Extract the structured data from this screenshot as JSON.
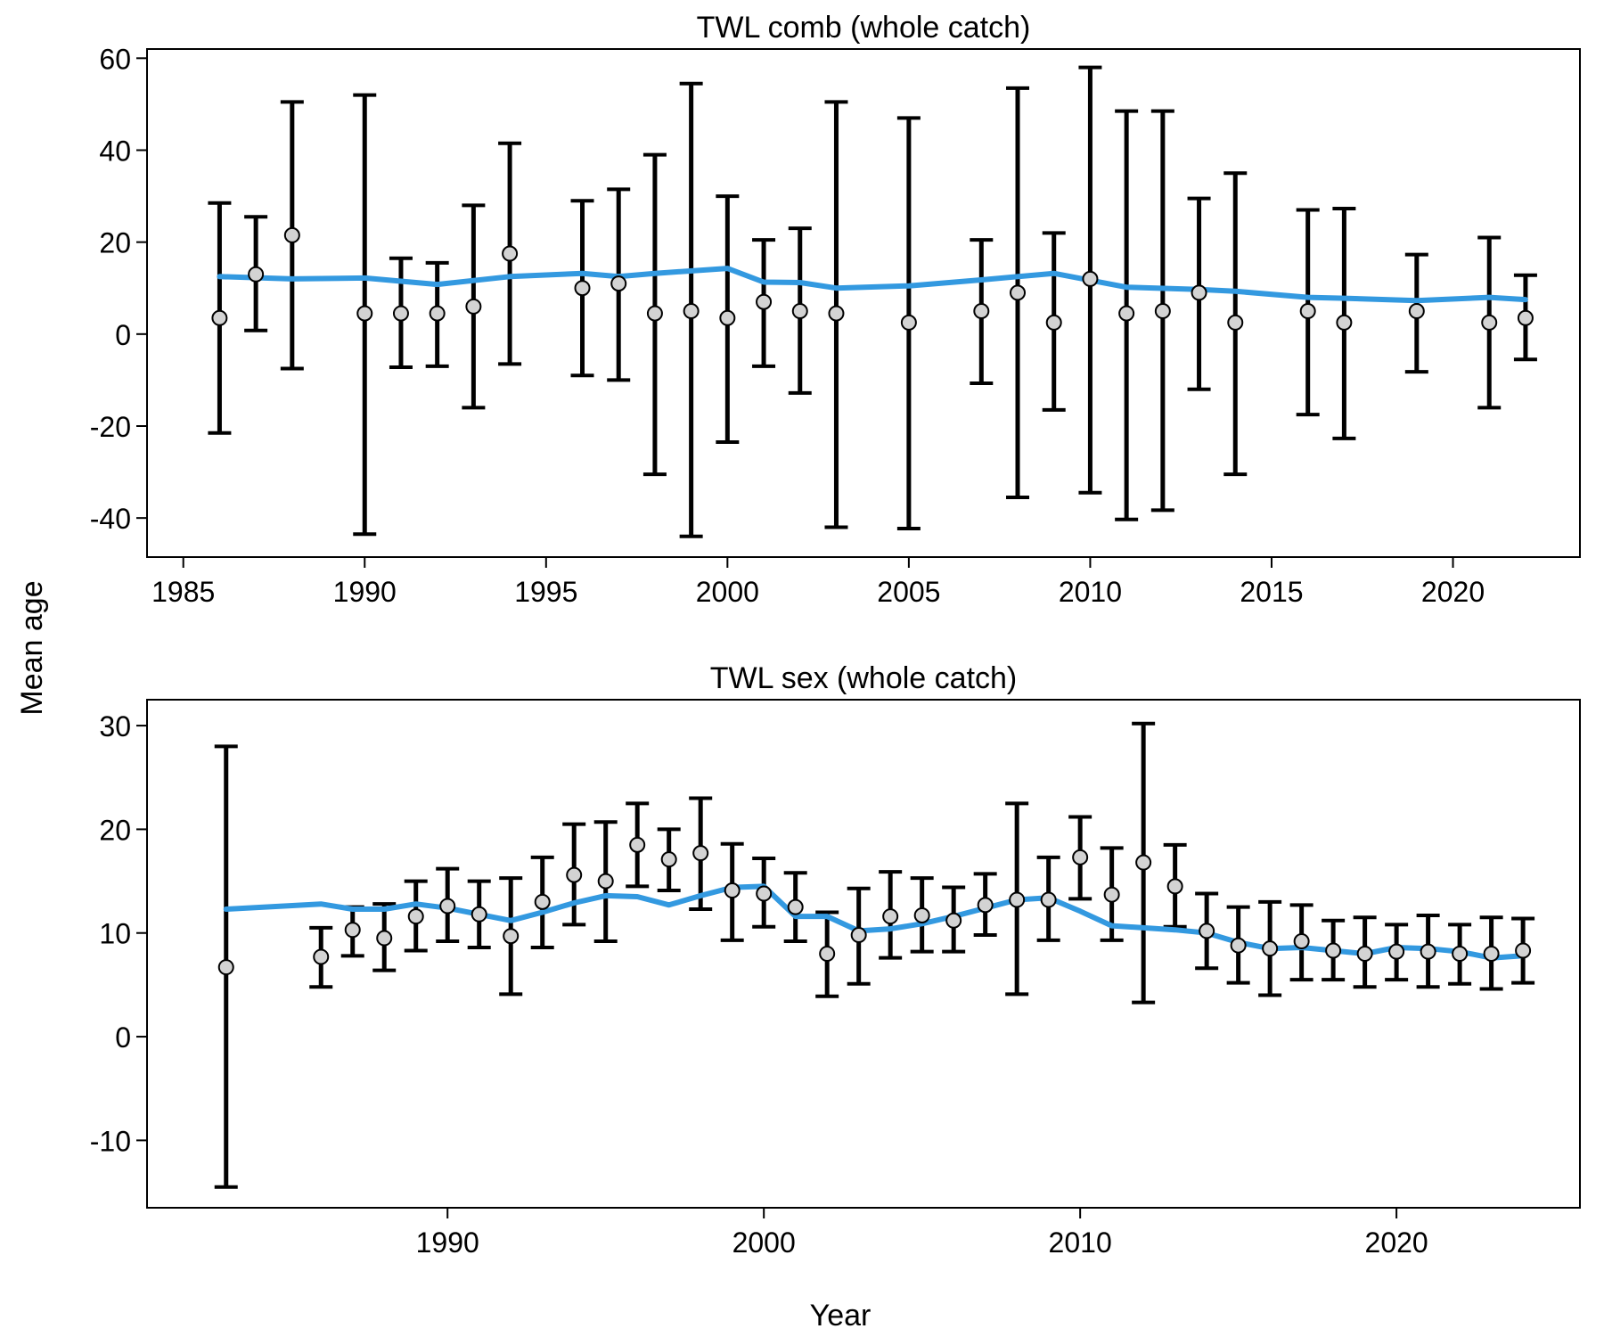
{
  "figure": {
    "ylabel": "Mean age",
    "xlabel": "Year"
  },
  "colors": {
    "errorbar": "#000000",
    "point_fill": "#d3d3d3",
    "point_stroke": "#000000",
    "expected_line": "#3399e0",
    "frame": "#000000"
  },
  "chart_data": [
    {
      "type": "scatter",
      "title": "TWL comb (whole catch)",
      "xlim": [
        1984,
        2023.5
      ],
      "ylim": [
        -48.5,
        62
      ],
      "xticks": [
        1985,
        1990,
        1995,
        2000,
        2005,
        2010,
        2015,
        2020
      ],
      "yticks": [
        -40,
        -20,
        0,
        20,
        40,
        60
      ],
      "x": [
        1986,
        1987,
        1988,
        1990,
        1991,
        1992,
        1993,
        1994,
        1996,
        1997,
        1998,
        1999,
        2000,
        2001,
        2002,
        2003,
        2005,
        2007,
        2008,
        2009,
        2010,
        2011,
        2012,
        2013,
        2014,
        2016,
        2017,
        2019,
        2021,
        2022
      ],
      "observed": [
        3.5,
        13,
        21.5,
        4.5,
        4.5,
        4.5,
        6,
        17.5,
        10,
        11,
        4.5,
        5,
        3.5,
        7,
        5,
        4.5,
        2.5,
        5,
        9,
        2.5,
        12,
        4.5,
        5,
        9,
        2.5,
        5,
        2.5,
        5,
        2.5,
        3.5
      ],
      "lower": [
        -21.5,
        0.8,
        -7.5,
        -43.5,
        -7.2,
        -7,
        -16,
        -6.5,
        -9,
        -10,
        -30.5,
        -44,
        -23.5,
        -7,
        -12.8,
        -42,
        -42.3,
        -10.7,
        -35.5,
        -16.5,
        -34.5,
        -40.3,
        -38.3,
        -12,
        -30.5,
        -17.5,
        -22.7,
        -8.2,
        -16,
        -5.5
      ],
      "upper": [
        28.5,
        25.5,
        50.5,
        52,
        16.5,
        15.5,
        28,
        41.5,
        29,
        31.5,
        39,
        54.5,
        30,
        20.5,
        23,
        50.5,
        47,
        20.5,
        53.5,
        22,
        58,
        48.5,
        48.5,
        29.5,
        35,
        27,
        27.3,
        17.3,
        21,
        12.8
      ],
      "expected_x": [
        1986,
        1988,
        1990,
        1992,
        1994,
        1996,
        1997,
        1998,
        2000,
        2001,
        2002,
        2003,
        2005,
        2007,
        2009,
        2011,
        2013,
        2014,
        2016,
        2017,
        2019,
        2021,
        2022
      ],
      "expected": [
        12.5,
        12,
        12.2,
        10.8,
        12.5,
        13.2,
        12.5,
        13.2,
        14.3,
        11.3,
        11.2,
        10,
        10.5,
        11.8,
        13.2,
        10.2,
        9.7,
        9.3,
        8,
        7.8,
        7.3,
        8,
        7.5
      ]
    },
    {
      "type": "scatter",
      "title": "TWL sex (whole catch)",
      "xlim": [
        1980.5,
        2025.8
      ],
      "ylim": [
        -16.5,
        32.5
      ],
      "xticks": [
        1990,
        2000,
        2010,
        2020
      ],
      "yticks": [
        -10,
        0,
        10,
        20,
        30
      ],
      "x": [
        1983,
        1986,
        1987,
        1988,
        1989,
        1990,
        1991,
        1992,
        1993,
        1994,
        1995,
        1996,
        1997,
        1998,
        1999,
        2000,
        2001,
        2002,
        2003,
        2004,
        2005,
        2006,
        2007,
        2008,
        2009,
        2010,
        2011,
        2012,
        2013,
        2014,
        2015,
        2016,
        2017,
        2018,
        2019,
        2020,
        2021,
        2022,
        2023,
        2024
      ],
      "observed": [
        6.7,
        7.7,
        10.3,
        9.5,
        11.6,
        12.6,
        11.8,
        9.7,
        13,
        15.6,
        15,
        18.5,
        17.1,
        17.7,
        14.1,
        13.8,
        12.5,
        8,
        9.8,
        11.6,
        11.7,
        11.2,
        12.7,
        13.2,
        13.2,
        17.3,
        13.7,
        16.8,
        14.5,
        10.2,
        8.8,
        8.5,
        9.2,
        8.3,
        8,
        8.2,
        8.2,
        8,
        8,
        8.3
      ],
      "lower": [
        -14.5,
        4.8,
        7.8,
        6.4,
        8.3,
        9.2,
        8.6,
        4.1,
        8.6,
        10.8,
        9.2,
        14.5,
        14.1,
        12.3,
        9.3,
        10.6,
        9.2,
        3.9,
        5.1,
        7.6,
        8.2,
        8.2,
        9.8,
        4.1,
        9.3,
        13.3,
        9.3,
        3.3,
        10.6,
        6.6,
        5.2,
        4,
        5.5,
        5.5,
        4.8,
        5.5,
        4.8,
        5.1,
        4.6,
        5.2
      ],
      "upper": [
        28,
        10.5,
        12.5,
        12.8,
        15,
        16.2,
        15,
        15.3,
        17.3,
        20.5,
        20.7,
        22.5,
        20,
        23,
        18.6,
        17.2,
        15.8,
        12,
        14.3,
        15.9,
        15.3,
        14.4,
        15.7,
        22.5,
        17.3,
        21.2,
        18.2,
        30.2,
        18.5,
        13.8,
        12.5,
        13,
        12.7,
        11.2,
        11.5,
        10.8,
        11.7,
        10.8,
        11.5,
        11.4
      ],
      "expected_x": [
        1983,
        1986,
        1987,
        1988,
        1989,
        1990,
        1991,
        1992,
        1993,
        1994,
        1995,
        1996,
        1997,
        1998,
        1999,
        2000,
        2001,
        2002,
        2003,
        2004,
        2005,
        2006,
        2007,
        2008,
        2009,
        2010,
        2011,
        2012,
        2013,
        2014,
        2015,
        2016,
        2017,
        2018,
        2019,
        2020,
        2021,
        2022,
        2023,
        2024
      ],
      "expected": [
        12.3,
        12.8,
        12.3,
        12.3,
        12.8,
        12.4,
        11.8,
        11.2,
        12,
        12.9,
        13.6,
        13.5,
        12.7,
        13.6,
        14.4,
        14.5,
        11.6,
        11.6,
        10.2,
        10.4,
        10.9,
        11.6,
        12.4,
        13.2,
        13.4,
        12.1,
        10.7,
        10.5,
        10.3,
        10,
        9.1,
        8.5,
        8.6,
        8.3,
        8,
        8.6,
        8.5,
        8.2,
        7.6,
        7.8
      ]
    }
  ]
}
